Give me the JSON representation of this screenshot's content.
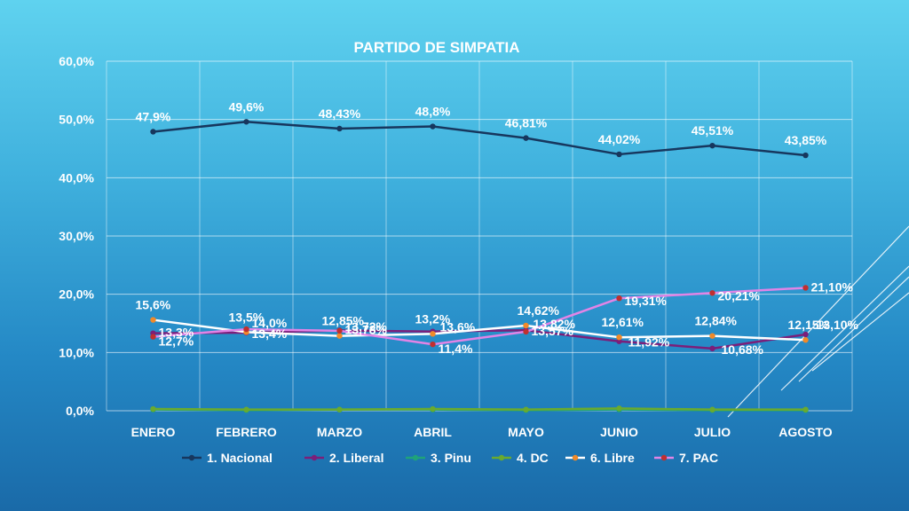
{
  "chart_data": {
    "type": "line",
    "title": "PARTIDO DE SIMPATIA",
    "categories": [
      "ENERO",
      "FEBRERO",
      "MARZO",
      "ABRIL",
      "MAYO",
      "JUNIO",
      "JULIO",
      "AGOSTO"
    ],
    "ylim": [
      0,
      60
    ],
    "yticks": [
      "0,0%",
      "10,0%",
      "20,0%",
      "30,0%",
      "40,0%",
      "50,0%",
      "60,0%"
    ],
    "grid": true,
    "legend_position": "bottom",
    "series": [
      {
        "name": "1. Nacional",
        "color": "#17375e",
        "values": [
          47.9,
          49.6,
          48.43,
          48.8,
          46.81,
          44.02,
          45.51,
          43.85
        ],
        "labels": [
          "47,9%",
          "49,6%",
          "48,43%",
          "48,8%",
          "46,81%",
          "44,02%",
          "45,51%",
          "43,85%"
        ]
      },
      {
        "name": "2. Liberal",
        "color": "#7b1f7a",
        "values": [
          13.3,
          13.4,
          13.78,
          13.6,
          13.82,
          11.92,
          10.68,
          13.1
        ],
        "labels": [
          "13,3%",
          "13,4%",
          "13,78%",
          "13,6%",
          "13,82%",
          "11,92%",
          "10,68%",
          "13,10%"
        ]
      },
      {
        "name": "3. Pinu",
        "color": "#1fa37a",
        "values": [
          0.2,
          0.1,
          0.2,
          0.2,
          0.1,
          0.2,
          0.1,
          0.1
        ],
        "labels": []
      },
      {
        "name": "4. DC",
        "color": "#6aaa2f",
        "values": [
          0.3,
          0.2,
          0.2,
          0.3,
          0.2,
          0.4,
          0.2,
          0.2
        ],
        "labels": []
      },
      {
        "name": "6. Libre",
        "color": "#ffffff",
        "marker": "#f08a2a",
        "values": [
          15.6,
          13.5,
          12.85,
          13.2,
          14.62,
          12.61,
          12.84,
          12.15
        ],
        "labels": [
          "15,6%",
          "13,5%",
          "12,85%",
          "13,2%",
          "14,62%",
          "12,61%",
          "12,84%",
          "12,15%"
        ]
      },
      {
        "name": "7. PAC",
        "color": "#e184e6",
        "marker": "#c0302f",
        "values": [
          12.7,
          14.0,
          13.72,
          11.4,
          13.57,
          19.31,
          20.21,
          21.1
        ],
        "labels": [
          "12,7%",
          "14,0%",
          "13,72%",
          "11,4%",
          "13,57%",
          "19,31%",
          "20,21%",
          "21,10%"
        ]
      }
    ]
  }
}
